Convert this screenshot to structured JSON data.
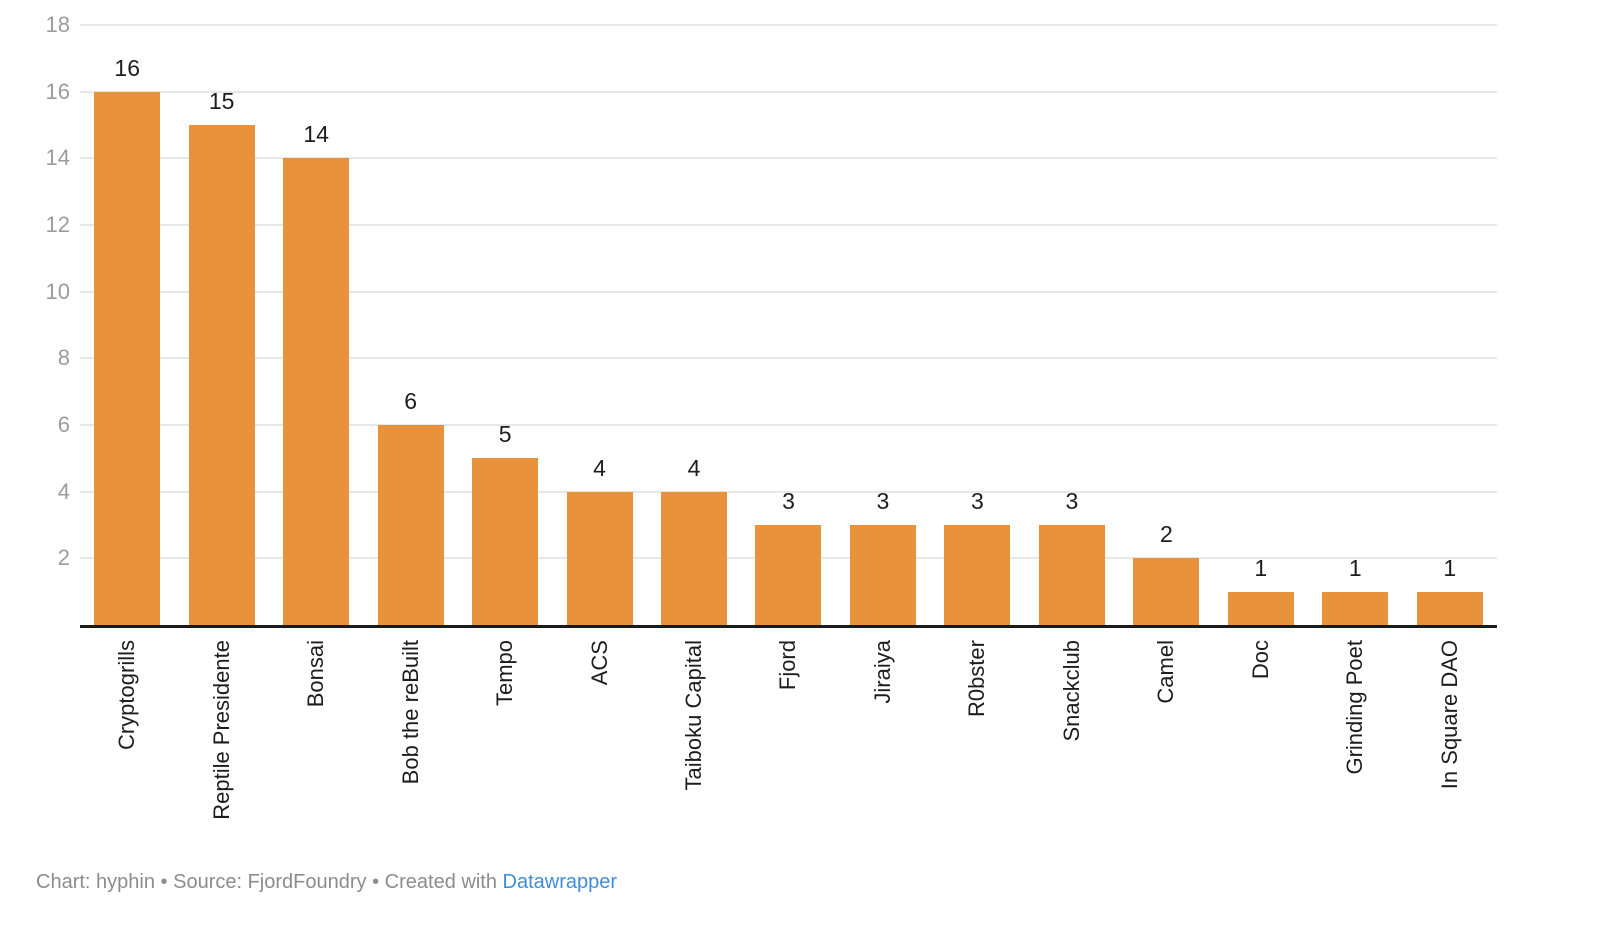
{
  "chart_data": {
    "type": "bar",
    "categories": [
      "Cryptogrills",
      "Reptile Presidente",
      "Bonsai",
      "Bob the reBuilt",
      "Tempo",
      "ACS",
      "Taiboku Capital",
      "Fjord",
      "Jiraiya",
      "R0bster",
      "Snackclub",
      "Camel",
      "Doc",
      "Grinding Poet",
      "In Square DAO"
    ],
    "values": [
      16,
      15,
      14,
      6,
      5,
      4,
      4,
      3,
      3,
      3,
      3,
      2,
      1,
      1,
      1
    ],
    "title": "",
    "xlabel": "",
    "ylabel": "",
    "ylim": [
      0,
      18
    ],
    "yticks": [
      2,
      4,
      6,
      8,
      10,
      12,
      14,
      16,
      18
    ],
    "grid": true,
    "legend": "none",
    "value_labels": true
  },
  "colors": {
    "bar": "#E8923B",
    "gridline": "#E7E7E7",
    "axis_line": "#1A1A1A",
    "y_tick_label": "#9C9C9C",
    "value_label": "#1D1D1D",
    "category_label": "#1D1D1D",
    "footer_text": "#8C8C8C",
    "link": "#3E8DD8"
  },
  "footer": {
    "credit": "Chart: hyphin",
    "bullet": "•",
    "source": "Source: FjordFoundry",
    "created": "Created with",
    "link": "Datawrapper"
  }
}
